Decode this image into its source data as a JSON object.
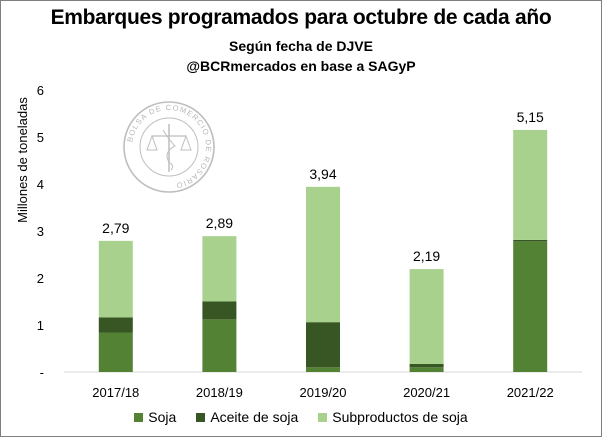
{
  "chart_data": {
    "type": "bar",
    "stacked": true,
    "title": "Embarques programados para octubre de cada año",
    "subtitle": "Según fecha de DJVE",
    "subtitle2": "@BCRmercados en base a SAGyP",
    "ylabel": "Millones de toneladas",
    "ylim": [
      0,
      6
    ],
    "yticks": [
      "-",
      "1",
      "2",
      "3",
      "4",
      "5",
      "6"
    ],
    "categories": [
      "2017/18",
      "2018/19",
      "2019/20",
      "2020/21",
      "2021/22"
    ],
    "series": [
      {
        "name": "Soja",
        "color": "#548235",
        "values": [
          0.84,
          1.12,
          0.1,
          0.1,
          2.78
        ]
      },
      {
        "name": "Aceite de soja",
        "color": "#375623",
        "values": [
          0.32,
          0.38,
          0.96,
          0.07,
          0.03
        ]
      },
      {
        "name": "Subproductos de soja",
        "color": "#a9d18e",
        "values": [
          1.63,
          1.39,
          2.88,
          2.02,
          2.34
        ]
      }
    ],
    "totals": [
      "2,79",
      "2,89",
      "3,94",
      "2,19",
      "5,15"
    ],
    "legend_position": "bottom",
    "grid": false,
    "watermark": "BOLSA DE COMERCIO DE ROSARIO"
  }
}
